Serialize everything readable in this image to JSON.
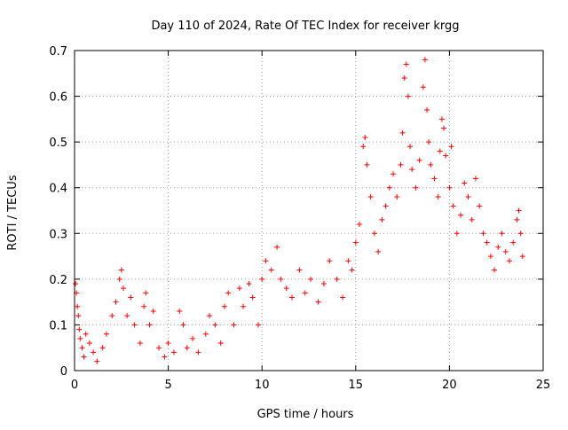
{
  "chart_data": {
    "type": "scatter",
    "title": "Day 110 of 2024, Rate Of TEC Index for receiver krgg",
    "xlabel": "GPS time / hours",
    "ylabel": "ROTI / TECUs",
    "xlim": [
      0,
      25
    ],
    "ylim": [
      0,
      0.7
    ],
    "x_ticks": [
      0,
      5,
      10,
      15,
      20,
      25
    ],
    "y_ticks": [
      0,
      0.1,
      0.2,
      0.3,
      0.4,
      0.5,
      0.6,
      0.7
    ],
    "x_tick_labels": [
      "0",
      "5",
      "10",
      "15",
      "20",
      "25"
    ],
    "y_tick_labels": [
      "0",
      "0.1",
      "0.2",
      "0.3",
      "0.4",
      "0.5",
      "0.6",
      "0.7"
    ],
    "grid": true,
    "marker": "+",
    "series_color": "#ff0000",
    "series": [
      {
        "name": "ROTI",
        "points": [
          [
            0.05,
            0.19
          ],
          [
            0.1,
            0.17
          ],
          [
            0.15,
            0.14
          ],
          [
            0.2,
            0.12
          ],
          [
            0.25,
            0.09
          ],
          [
            0.3,
            0.07
          ],
          [
            0.4,
            0.05
          ],
          [
            0.5,
            0.03
          ],
          [
            0.6,
            0.08
          ],
          [
            0.8,
            0.06
          ],
          [
            1.0,
            0.04
          ],
          [
            1.2,
            0.02
          ],
          [
            1.5,
            0.05
          ],
          [
            1.7,
            0.08
          ],
          [
            2.0,
            0.12
          ],
          [
            2.2,
            0.15
          ],
          [
            2.4,
            0.2
          ],
          [
            2.5,
            0.22
          ],
          [
            2.6,
            0.18
          ],
          [
            2.8,
            0.12
          ],
          [
            3.0,
            0.16
          ],
          [
            3.2,
            0.1
          ],
          [
            3.5,
            0.06
          ],
          [
            3.7,
            0.14
          ],
          [
            3.8,
            0.17
          ],
          [
            4.0,
            0.1
          ],
          [
            4.2,
            0.13
          ],
          [
            4.5,
            0.05
          ],
          [
            4.8,
            0.03
          ],
          [
            5.0,
            0.06
          ],
          [
            5.3,
            0.04
          ],
          [
            5.6,
            0.13
          ],
          [
            5.8,
            0.1
          ],
          [
            6.0,
            0.05
          ],
          [
            6.3,
            0.07
          ],
          [
            6.6,
            0.04
          ],
          [
            7.0,
            0.08
          ],
          [
            7.2,
            0.12
          ],
          [
            7.5,
            0.1
          ],
          [
            7.8,
            0.06
          ],
          [
            8.0,
            0.14
          ],
          [
            8.2,
            0.17
          ],
          [
            8.5,
            0.1
          ],
          [
            8.8,
            0.18
          ],
          [
            9.0,
            0.14
          ],
          [
            9.3,
            0.19
          ],
          [
            9.5,
            0.16
          ],
          [
            9.8,
            0.1
          ],
          [
            10.0,
            0.2
          ],
          [
            10.2,
            0.24
          ],
          [
            10.5,
            0.22
          ],
          [
            10.8,
            0.27
          ],
          [
            11.0,
            0.2
          ],
          [
            11.3,
            0.18
          ],
          [
            11.6,
            0.16
          ],
          [
            12.0,
            0.22
          ],
          [
            12.3,
            0.17
          ],
          [
            12.6,
            0.2
          ],
          [
            13.0,
            0.15
          ],
          [
            13.3,
            0.19
          ],
          [
            13.6,
            0.24
          ],
          [
            14.0,
            0.2
          ],
          [
            14.3,
            0.16
          ],
          [
            14.6,
            0.24
          ],
          [
            14.8,
            0.22
          ],
          [
            15.0,
            0.28
          ],
          [
            15.2,
            0.32
          ],
          [
            15.4,
            0.49
          ],
          [
            15.5,
            0.51
          ],
          [
            15.6,
            0.45
          ],
          [
            15.8,
            0.38
          ],
          [
            16.0,
            0.3
          ],
          [
            16.2,
            0.26
          ],
          [
            16.4,
            0.33
          ],
          [
            16.6,
            0.36
          ],
          [
            16.8,
            0.4
          ],
          [
            17.0,
            0.43
          ],
          [
            17.2,
            0.38
          ],
          [
            17.4,
            0.45
          ],
          [
            17.5,
            0.52
          ],
          [
            17.6,
            0.64
          ],
          [
            17.7,
            0.67
          ],
          [
            17.8,
            0.6
          ],
          [
            17.9,
            0.49
          ],
          [
            18.0,
            0.44
          ],
          [
            18.2,
            0.4
          ],
          [
            18.4,
            0.46
          ],
          [
            18.6,
            0.62
          ],
          [
            18.7,
            0.68
          ],
          [
            18.8,
            0.57
          ],
          [
            18.9,
            0.5
          ],
          [
            19.0,
            0.45
          ],
          [
            19.2,
            0.42
          ],
          [
            19.4,
            0.38
          ],
          [
            19.5,
            0.48
          ],
          [
            19.6,
            0.55
          ],
          [
            19.7,
            0.53
          ],
          [
            19.8,
            0.47
          ],
          [
            20.0,
            0.4
          ],
          [
            20.1,
            0.49
          ],
          [
            20.2,
            0.36
          ],
          [
            20.4,
            0.3
          ],
          [
            20.6,
            0.34
          ],
          [
            20.8,
            0.41
          ],
          [
            21.0,
            0.38
          ],
          [
            21.2,
            0.33
          ],
          [
            21.4,
            0.42
          ],
          [
            21.6,
            0.36
          ],
          [
            21.8,
            0.3
          ],
          [
            22.0,
            0.28
          ],
          [
            22.2,
            0.25
          ],
          [
            22.4,
            0.22
          ],
          [
            22.6,
            0.27
          ],
          [
            22.8,
            0.3
          ],
          [
            23.0,
            0.26
          ],
          [
            23.2,
            0.24
          ],
          [
            23.4,
            0.28
          ],
          [
            23.6,
            0.33
          ],
          [
            23.7,
            0.35
          ],
          [
            23.8,
            0.3
          ],
          [
            23.9,
            0.25
          ]
        ]
      }
    ]
  }
}
